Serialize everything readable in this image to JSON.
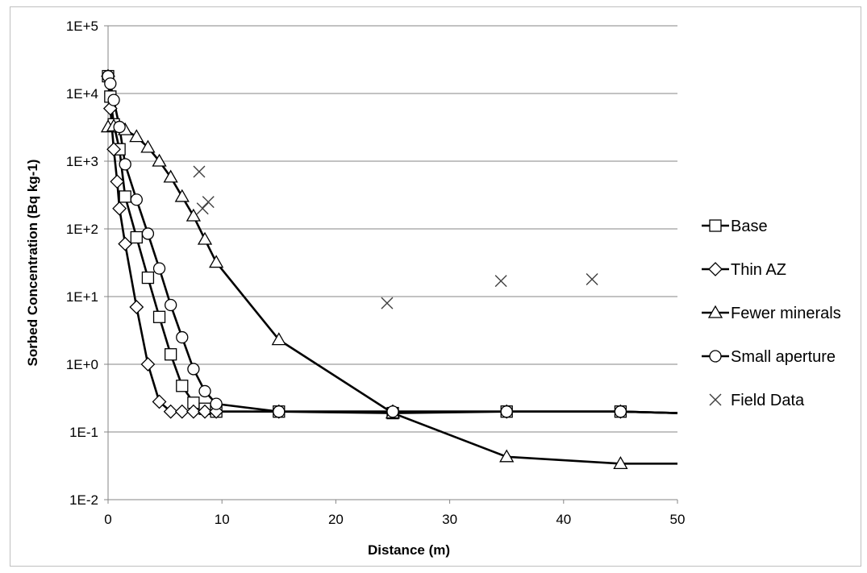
{
  "chart_data": {
    "type": "scatter",
    "title": "",
    "xlabel": "Distance (m)",
    "ylabel": "Sorbed Concentration (Bq kg-1)",
    "xlim": [
      0,
      50
    ],
    "ylim": [
      0.01,
      100000
    ],
    "yscale": "log",
    "grid": "horizontal major gridlines",
    "legend_position": "right",
    "x_ticks": [
      "0",
      "10",
      "20",
      "30",
      "40",
      "50"
    ],
    "y_ticks": [
      "1E-2",
      "1E-1",
      "1E+0",
      "1E+1",
      "1E+2",
      "1E+3",
      "1E+4",
      "1E+5"
    ],
    "series": [
      {
        "name": "Base",
        "marker": "square",
        "line": true,
        "x": [
          0,
          0.2,
          0.5,
          1,
          1.5,
          2.5,
          3.5,
          4.5,
          5.5,
          6.5,
          7.5,
          8.5,
          9.5,
          15,
          25,
          35,
          45,
          50
        ],
        "y": [
          18000,
          9000,
          3500,
          1500,
          300,
          75,
          19,
          5,
          1.4,
          0.48,
          0.27,
          0.22,
          0.2,
          0.2,
          0.19,
          0.2,
          0.2,
          0.19
        ]
      },
      {
        "name": "Thin AZ",
        "marker": "diamond",
        "line": true,
        "x": [
          0,
          0.2,
          0.5,
          0.8,
          1,
          1.5,
          2.5,
          3.5,
          4.5,
          5.5,
          6.5,
          7.5,
          8.5,
          9.5,
          15,
          25,
          35,
          45,
          50
        ],
        "y": [
          18000,
          6000,
          1500,
          500,
          200,
          60,
          7,
          1,
          0.28,
          0.2,
          0.2,
          0.2,
          0.2,
          0.2,
          0.2,
          0.2,
          0.2,
          0.2,
          0.19
        ]
      },
      {
        "name": "Fewer minerals",
        "marker": "triangle",
        "line": true,
        "x": [
          0,
          0.5,
          1,
          1.5,
          2.5,
          3.5,
          4.5,
          5.5,
          6.5,
          7.5,
          8.5,
          9.5,
          15,
          25,
          35,
          45,
          50
        ],
        "y": [
          3200,
          3300,
          3200,
          2900,
          2300,
          1600,
          1000,
          580,
          300,
          155,
          70,
          32,
          2.3,
          0.19,
          0.043,
          0.034,
          0.034
        ]
      },
      {
        "name": "Small aperture",
        "marker": "circle",
        "line": true,
        "x": [
          0,
          0.2,
          0.5,
          1,
          1.5,
          2.5,
          3.5,
          4.5,
          5.5,
          6.5,
          7.5,
          8.5,
          9.5,
          15,
          25,
          35,
          45,
          50
        ],
        "y": [
          18000,
          14000,
          8000,
          3200,
          900,
          270,
          85,
          26,
          7.5,
          2.5,
          0.85,
          0.4,
          0.26,
          0.2,
          0.2,
          0.2,
          0.2,
          0.19
        ]
      },
      {
        "name": "Field Data",
        "marker": "x",
        "line": false,
        "x": [
          8,
          8.3,
          8.8,
          24.5,
          34.5,
          42.5
        ],
        "y": [
          700,
          200,
          250,
          8,
          17,
          18
        ]
      }
    ]
  }
}
